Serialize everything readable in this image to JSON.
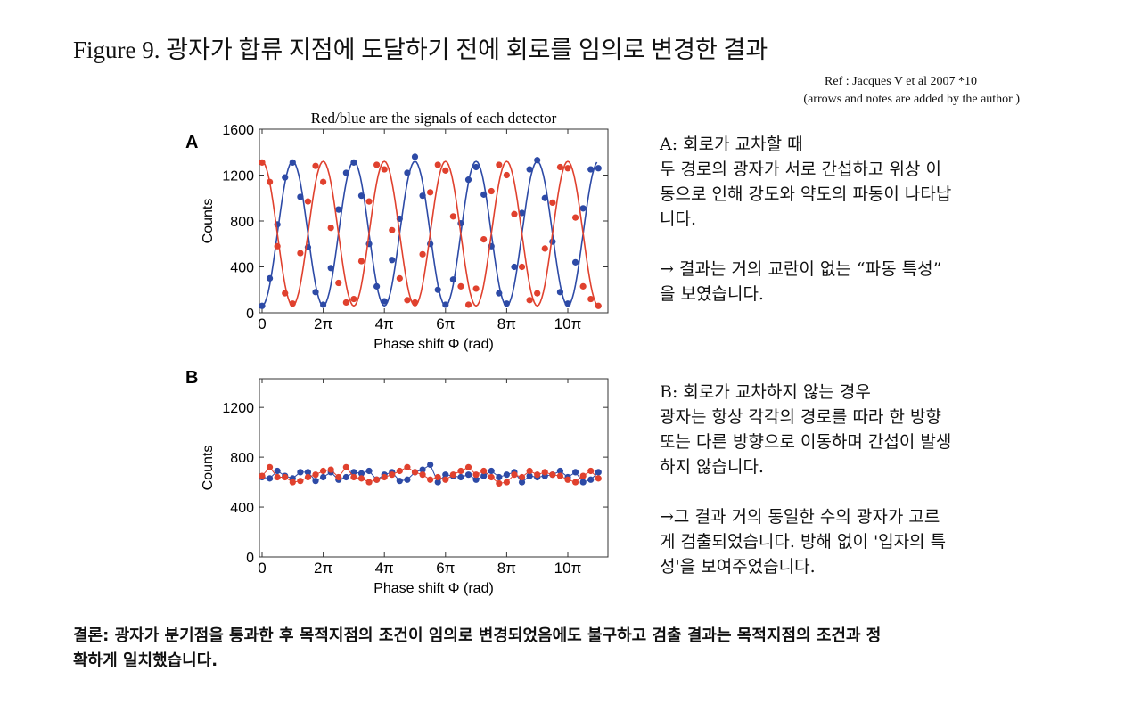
{
  "title": "Figure 9. 광자가 합류 지점에 도달하기 전에 회로를 임의로 변경한 결과",
  "reference": {
    "line1": "Ref : Jacques V et al 2007 *10",
    "line2": "(arrows and notes are added by the author )"
  },
  "colors": {
    "red": "#e0412e",
    "blue": "#2d4aa6"
  },
  "panel_a_text": [
    "A: 회로가 교차할 때",
    "두 경로의 광자가 서로 간섭하고 위상 이",
    "동으로 인해 강도와 약도의 파동이 나타납",
    "니다.",
    "",
    "→ 결과는 거의 교란이 없는 “파동 특성”",
    "을 보였습니다."
  ],
  "panel_b_text": [
    "B: 회로가 교차하지 않는 경우",
    "광자는 항상 각각의 경로를 따라 한 방향",
    "또는 다른 방향으로 이동하며 간섭이 발생",
    "하지 않습니다.",
    "",
    "→그 결과 거의 동일한 수의 광자가 고르",
    "게 검출되었습니다. 방해 없이 '입자의 특",
    "성'을 보여주었습니다."
  ],
  "conclusion": [
    "결론: 광자가 분기점을 통과한 후 목적지점의 조건이 임의로 변경되었음에도 불구하고 검출 결과는 목적지점의 조건과 정",
    "확하게 일치했습니다."
  ],
  "chart_data": [
    {
      "type": "scatter",
      "panel_label": "A",
      "title": "Red/blue are the signals of each detector",
      "xlabel": "Phase shift Φ (rad)",
      "ylabel": "Counts",
      "x_unit": "π",
      "xlim": [
        0,
        11.2
      ],
      "ylim": [
        0,
        1600
      ],
      "yticks": [
        0,
        400,
        800,
        1200,
        1600
      ],
      "xticks": [
        0,
        2,
        4,
        6,
        8,
        10
      ],
      "xtick_labels": [
        "0",
        "2π",
        "4π",
        "6π",
        "8π",
        "10π"
      ],
      "fit": {
        "model": "cosine",
        "offset": 690,
        "amplitude": 630
      },
      "x": [
        0,
        0.25,
        0.5,
        0.75,
        1,
        1.25,
        1.5,
        1.75,
        2,
        2.25,
        2.5,
        2.75,
        3,
        3.25,
        3.5,
        3.75,
        4,
        4.25,
        4.5,
        4.75,
        5,
        5.25,
        5.5,
        5.75,
        6,
        6.25,
        6.5,
        6.75,
        7,
        7.25,
        7.5,
        7.75,
        8,
        8.25,
        8.5,
        8.75,
        9,
        9.25,
        9.5,
        9.75,
        10,
        10.25,
        10.5,
        10.75,
        11
      ],
      "series": [
        {
          "color": "blue",
          "values": [
            60,
            300,
            770,
            1180,
            1310,
            1010,
            570,
            180,
            70,
            390,
            900,
            1220,
            1310,
            1020,
            600,
            230,
            100,
            460,
            820,
            1220,
            1360,
            1020,
            600,
            200,
            70,
            290,
            780,
            1160,
            1270,
            1030,
            580,
            170,
            80,
            400,
            870,
            1250,
            1330,
            1000,
            620,
            180,
            80,
            440,
            910,
            1250,
            1260
          ]
        },
        {
          "color": "red",
          "values": [
            1310,
            1140,
            580,
            170,
            80,
            520,
            970,
            1280,
            1140,
            740,
            260,
            90,
            120,
            450,
            970,
            1290,
            1250,
            720,
            300,
            110,
            90,
            510,
            1050,
            1290,
            1240,
            840,
            230,
            70,
            210,
            640,
            1060,
            1290,
            1200,
            860,
            400,
            110,
            170,
            560,
            960,
            1270,
            1260,
            830,
            230,
            120,
            60
          ]
        }
      ]
    },
    {
      "type": "scatter",
      "panel_label": "B",
      "xlabel": "Phase shift Φ (rad)",
      "ylabel": "Counts",
      "x_unit": "π",
      "xlim": [
        0,
        11.2
      ],
      "ylim": [
        0,
        1430
      ],
      "yticks": [
        0,
        400,
        800,
        1200
      ],
      "xticks": [
        0,
        2,
        4,
        6,
        8,
        10
      ],
      "xtick_labels": [
        "0",
        "2π",
        "4π",
        "6π",
        "8π",
        "10π"
      ],
      "x": [
        0,
        0.25,
        0.5,
        0.75,
        1,
        1.25,
        1.5,
        1.75,
        2,
        2.25,
        2.5,
        2.75,
        3,
        3.25,
        3.5,
        3.75,
        4,
        4.25,
        4.5,
        4.75,
        5,
        5.25,
        5.5,
        5.75,
        6,
        6.25,
        6.5,
        6.75,
        7,
        7.25,
        7.5,
        7.75,
        8,
        8.25,
        8.5,
        8.75,
        9,
        9.25,
        9.5,
        9.75,
        10,
        10.25,
        10.5,
        10.75,
        11
      ],
      "series": [
        {
          "color": "blue",
          "values": [
            640,
            630,
            690,
            650,
            630,
            680,
            680,
            610,
            640,
            680,
            620,
            640,
            680,
            670,
            690,
            620,
            660,
            680,
            610,
            620,
            680,
            700,
            740,
            600,
            660,
            650,
            640,
            660,
            620,
            650,
            690,
            640,
            660,
            680,
            600,
            650,
            640,
            650,
            660,
            690,
            640,
            680,
            600,
            620,
            680
          ]
        },
        {
          "color": "red",
          "values": [
            650,
            720,
            640,
            640,
            600,
            610,
            640,
            660,
            690,
            700,
            640,
            720,
            640,
            630,
            600,
            620,
            640,
            660,
            690,
            720,
            680,
            660,
            620,
            640,
            620,
            660,
            690,
            720,
            660,
            690,
            640,
            590,
            600,
            660,
            640,
            690,
            660,
            680,
            660,
            650,
            620,
            600,
            650,
            690,
            630
          ]
        }
      ]
    }
  ]
}
